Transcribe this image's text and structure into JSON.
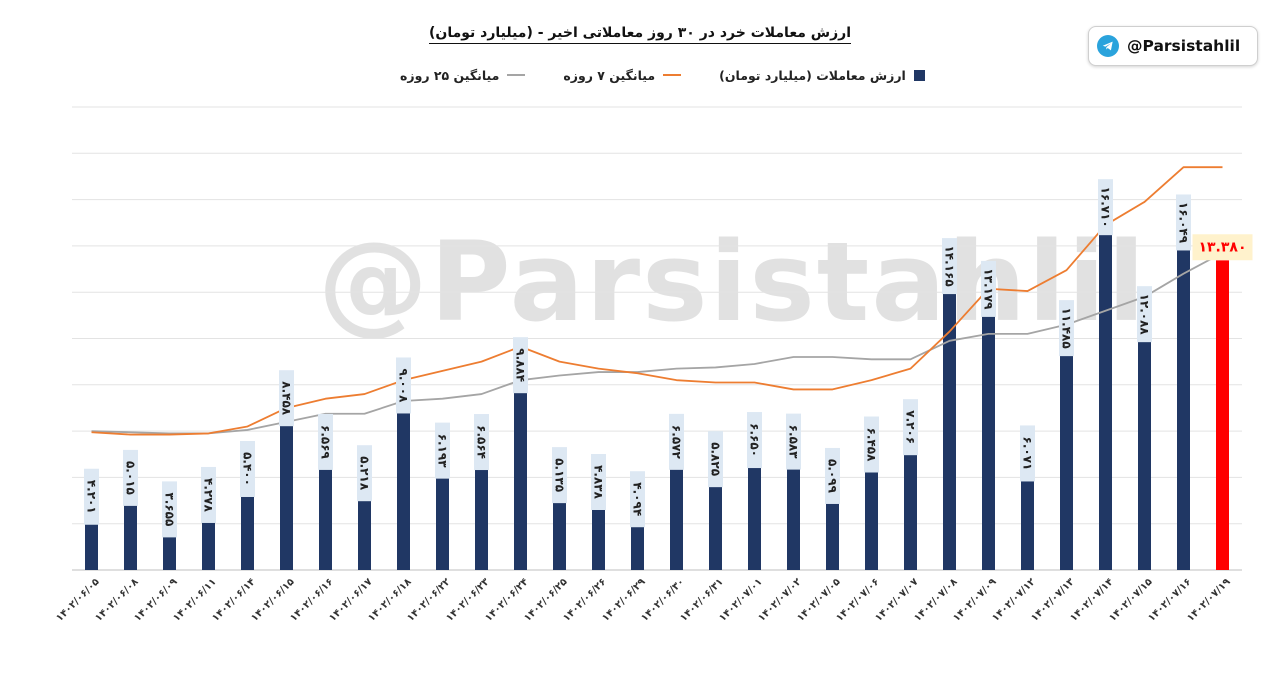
{
  "title": "ارزش معاملات خرد در ۳۰ روز معاملاتی اخیر - (میلیارد تومان)",
  "watermark": "@Parsistahlil",
  "handle": {
    "text": "@Parsistahlil",
    "icon": "telegram-icon"
  },
  "colors": {
    "bar": "#203764",
    "last_bar": "#ff0000",
    "ma7": "#ed7d31",
    "ma25": "#a5a5a5",
    "label_bg": "#dde8f3",
    "last_label_bg": "#fff2cc"
  },
  "chart_data": {
    "type": "bar",
    "title": "ارزش معاملات خرد در ۳۰ روز معاملاتی اخیر - (میلیارد تومان)",
    "ylim": [
      0,
      20000
    ],
    "grid": true,
    "legend_position": "top",
    "categories": [
      "۱۴۰۲/۰۶/۰۵",
      "۱۴۰۲/۰۶/۰۸",
      "۱۴۰۲/۰۶/۰۹",
      "۱۴۰۲/۰۶/۱۱",
      "۱۴۰۲/۰۶/۱۴",
      "۱۴۰۲/۰۶/۱۵",
      "۱۴۰۲/۰۶/۱۶",
      "۱۴۰۲/۰۶/۱۷",
      "۱۴۰۲/۰۶/۱۸",
      "۱۴۰۲/۰۶/۲۲",
      "۱۴۰۲/۰۶/۲۳",
      "۱۴۰۲/۰۶/۲۴",
      "۱۴۰۲/۰۶/۲۵",
      "۱۴۰۲/۰۶/۲۶",
      "۱۴۰۲/۰۶/۲۹",
      "۱۴۰۲/۰۶/۳۰",
      "۱۴۰۲/۰۶/۳۱",
      "۱۴۰۲/۰۷/۰۱",
      "۱۴۰۲/۰۷/۰۲",
      "۱۴۰۲/۰۷/۰۵",
      "۱۴۰۲/۰۷/۰۶",
      "۱۴۰۲/۰۷/۰۷",
      "۱۴۰۲/۰۷/۰۸",
      "۱۴۰۲/۰۷/۰۹",
      "۱۴۰۲/۰۷/۱۲",
      "۱۴۰۲/۰۷/۱۳",
      "۱۴۰۲/۰۷/۱۴",
      "۱۴۰۲/۰۷/۱۵",
      "۱۴۰۲/۰۷/۱۶",
      "۱۴۰۲/۰۷/۱۹"
    ],
    "series": [
      {
        "name": "ارزش معاملات (میلیارد تومان)",
        "type": "bar",
        "values": [
          4201,
          5015,
          3655,
          4278,
          5400,
          8458,
          6569,
          5218,
          9008,
          6193,
          6564,
          9884,
          5135,
          4838,
          4094,
          6572,
          5825,
          6650,
          6583,
          5099,
          6458,
          7206,
          14165,
          13179,
          6071,
          11485,
          16710,
          12088,
          16049,
          13380
        ],
        "labels": [
          "۴.۲۰۱",
          "۵.۰۱۵",
          "۳.۶۵۵",
          "۴.۲۷۸",
          "۵.۴۰۰",
          "۸.۴۵۸",
          "۶.۵۶۹",
          "۵.۲۱۸",
          "۹.۰۰۸",
          "۶.۱۹۳",
          "۶.۵۶۴",
          "۹.۸۸۴",
          "۵.۱۳۵",
          "۴.۸۳۸",
          "۴.۰۹۴",
          "۶.۵۷۲",
          "۵.۸۲۵",
          "۶.۶۵۰",
          "۶.۵۸۳",
          "۵.۰۹۹",
          "۶.۴۵۸",
          "۷.۲۰۶",
          "۱۴.۱۶۵",
          "۱۳.۱۷۹",
          "۶.۰۷۱",
          "۱۱.۴۸۵",
          "۱۶.۷۱۰",
          "۱۲.۰۸۸",
          "۱۶.۰۴۹",
          "۱۳.۳۸۰"
        ]
      },
      {
        "name": "میانگین ۷ روزه",
        "type": "line",
        "values": [
          5950,
          5850,
          5850,
          5900,
          6200,
          7000,
          7400,
          7600,
          8200,
          8600,
          9000,
          9650,
          9000,
          8700,
          8500,
          8200,
          8100,
          8100,
          7800,
          7800,
          8200,
          8700,
          10300,
          12150,
          12050,
          12950,
          14900,
          15900,
          17400,
          17400
        ]
      },
      {
        "name": "میانگین ۲۵ روزه",
        "type": "line",
        "values": [
          6000,
          5950,
          5900,
          5900,
          6050,
          6400,
          6750,
          6750,
          7300,
          7400,
          7600,
          8200,
          8400,
          8550,
          8550,
          8700,
          8750,
          8900,
          9200,
          9200,
          9100,
          9100,
          9900,
          10200,
          10200,
          10600,
          11200,
          11800,
          12800,
          13700
        ]
      }
    ]
  }
}
